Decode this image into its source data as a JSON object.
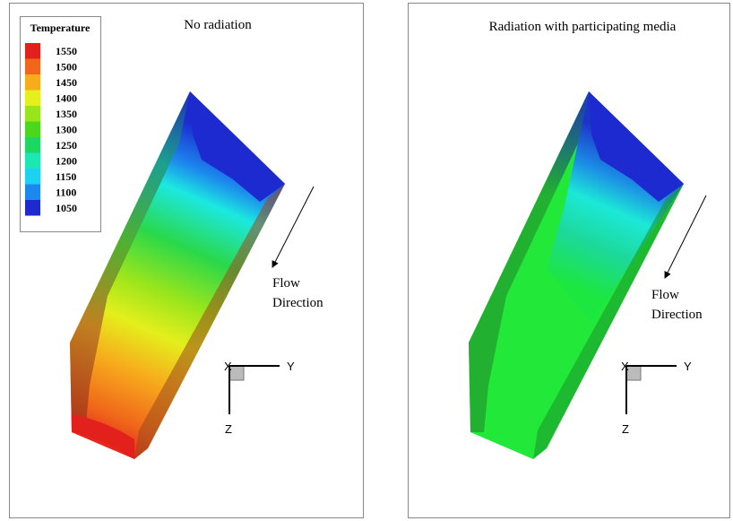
{
  "panels": [
    {
      "title": "No radiation",
      "flow_label": [
        "Flow",
        "Direction"
      ],
      "axes": {
        "x": "X",
        "y": "Y",
        "z": "Z"
      }
    },
    {
      "title": "Radiation with participating media",
      "flow_label": [
        "Flow",
        "Direction"
      ],
      "axes": {
        "x": "X",
        "y": "Y",
        "z": "Z"
      }
    }
  ],
  "legend": {
    "title": "Temperature",
    "levels": [
      {
        "value": 1550,
        "color": "#e3211c"
      },
      {
        "value": 1500,
        "color": "#f0661a"
      },
      {
        "value": 1450,
        "color": "#f7ac1c"
      },
      {
        "value": 1400,
        "color": "#e4ef1c"
      },
      {
        "value": 1350,
        "color": "#98e51c"
      },
      {
        "value": 1300,
        "color": "#4bd71c"
      },
      {
        "value": 1250,
        "color": "#1cd862"
      },
      {
        "value": 1200,
        "color": "#1ce8b4"
      },
      {
        "value": 1150,
        "color": "#1cd2f0"
      },
      {
        "value": 1100,
        "color": "#1c88ee"
      },
      {
        "value": 1050,
        "color": "#1c2ad0"
      }
    ]
  }
}
